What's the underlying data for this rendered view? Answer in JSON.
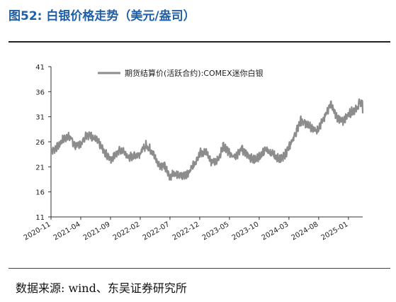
{
  "figure": {
    "title": "图52:  白银价格走势（美元/盎司）",
    "source": "数据来源: wind、东吴证券研究所"
  },
  "chart_data": {
    "type": "line",
    "title": "图52:  白银价格走势（美元/盎司）",
    "xlabel": "",
    "ylabel": "",
    "ylim": [
      11,
      41
    ],
    "yticks": [
      "41",
      "36",
      "31",
      "26",
      "21",
      "16",
      "11"
    ],
    "xticks": [
      "2020-11",
      "2021-04",
      "2021-09",
      "2022-02",
      "2022-07",
      "2022-12",
      "2023-05",
      "2023-10",
      "2024-03",
      "2024-08",
      "2025-01"
    ],
    "grid": false,
    "legend": "top",
    "line_color": "#8c8c8c",
    "series": [
      {
        "name": "期货结算价(活跃合约):COMEX迷你白银",
        "x": [
          "2020-11",
          "2020-12",
          "2021-01",
          "2021-02",
          "2021-03",
          "2021-04",
          "2021-05",
          "2021-06",
          "2021-07",
          "2021-08",
          "2021-09",
          "2021-10",
          "2021-11",
          "2021-12",
          "2022-01",
          "2022-02",
          "2022-03",
          "2022-04",
          "2022-05",
          "2022-06",
          "2022-07",
          "2022-08",
          "2022-09",
          "2022-10",
          "2022-11",
          "2022-12",
          "2023-01",
          "2023-02",
          "2023-03",
          "2023-04",
          "2023-05",
          "2023-06",
          "2023-07",
          "2023-08",
          "2023-09",
          "2023-10",
          "2023-11",
          "2023-12",
          "2024-01",
          "2024-02",
          "2024-03",
          "2024-04",
          "2024-05",
          "2024-06",
          "2024-07",
          "2024-08",
          "2024-09",
          "2024-10",
          "2024-11",
          "2024-12",
          "2025-01",
          "2025-02",
          "2025-03"
        ],
        "values": [
          24.2,
          24.8,
          26.5,
          27.1,
          25.3,
          25.6,
          27.6,
          26.9,
          25.8,
          23.8,
          22.5,
          23.9,
          24.3,
          22.8,
          23.3,
          23.7,
          25.4,
          24.1,
          21.5,
          21.2,
          19.1,
          19.8,
          19.2,
          19.4,
          21.4,
          23.8,
          23.9,
          21.9,
          22.4,
          25.2,
          23.7,
          22.8,
          24.6,
          23.6,
          22.3,
          22.9,
          24.5,
          23.7,
          22.8,
          22.7,
          24.9,
          27.4,
          30.2,
          29.5,
          28.7,
          28.4,
          31.1,
          33.5,
          31.1,
          29.9,
          31.6,
          32.3,
          33.8
        ]
      }
    ]
  }
}
